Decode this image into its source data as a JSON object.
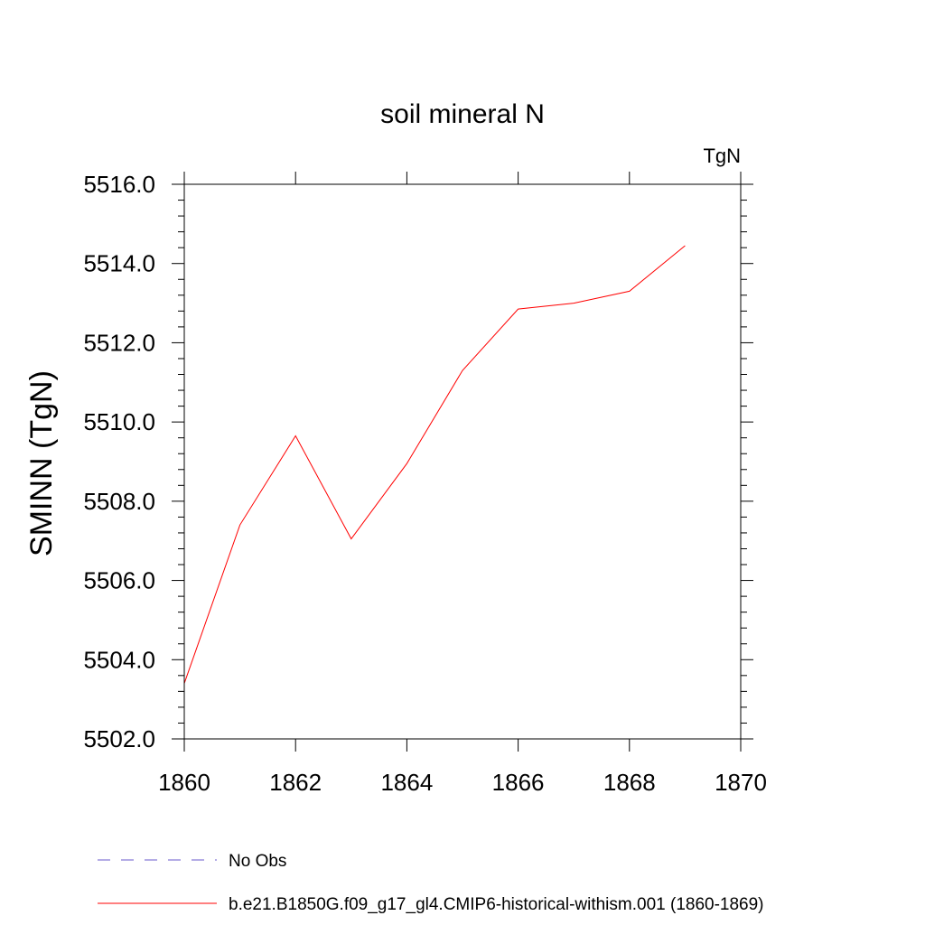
{
  "chart_data": {
    "type": "line",
    "title": "soil mineral N",
    "units_label": "TgN",
    "ylabel": "SMINN  (TgN)",
    "xlabel": "",
    "xlim": [
      1860,
      1870
    ],
    "ylim": [
      5502.0,
      5516.0
    ],
    "x_ticks": [
      1860,
      1862,
      1864,
      1866,
      1868,
      1870
    ],
    "x_tick_labels": [
      "1860",
      "1862",
      "1864",
      "1866",
      "1868",
      "1870"
    ],
    "y_ticks": [
      5502.0,
      5504.0,
      5506.0,
      5508.0,
      5510.0,
      5512.0,
      5514.0,
      5516.0
    ],
    "y_tick_labels": [
      "5502.0",
      "5504.0",
      "5506.0",
      "5508.0",
      "5510.0",
      "5512.0",
      "5514.0",
      "5516.0"
    ],
    "grid": false,
    "legend_position": "bottom",
    "series": [
      {
        "name": "b.e21.B1850G.f09_g17_gl4.CMIP6-historical-withism.001 (1860-1869)",
        "color": "#ff0000",
        "dash": "solid",
        "x": [
          1860,
          1861,
          1862,
          1863,
          1864,
          1865,
          1866,
          1867,
          1868,
          1869
        ],
        "y": [
          5503.4,
          5507.4,
          5509.65,
          5507.05,
          5508.95,
          5511.3,
          5512.85,
          5513.0,
          5513.3,
          5514.45
        ]
      }
    ],
    "legend": [
      {
        "label": "No Obs",
        "color": "#6a5acd",
        "dash": "dashed"
      },
      {
        "label": "b.e21.B1850G.f09_g17_gl4.CMIP6-historical-withism.001 (1860-1869)",
        "color": "#ff0000",
        "dash": "solid"
      }
    ]
  }
}
